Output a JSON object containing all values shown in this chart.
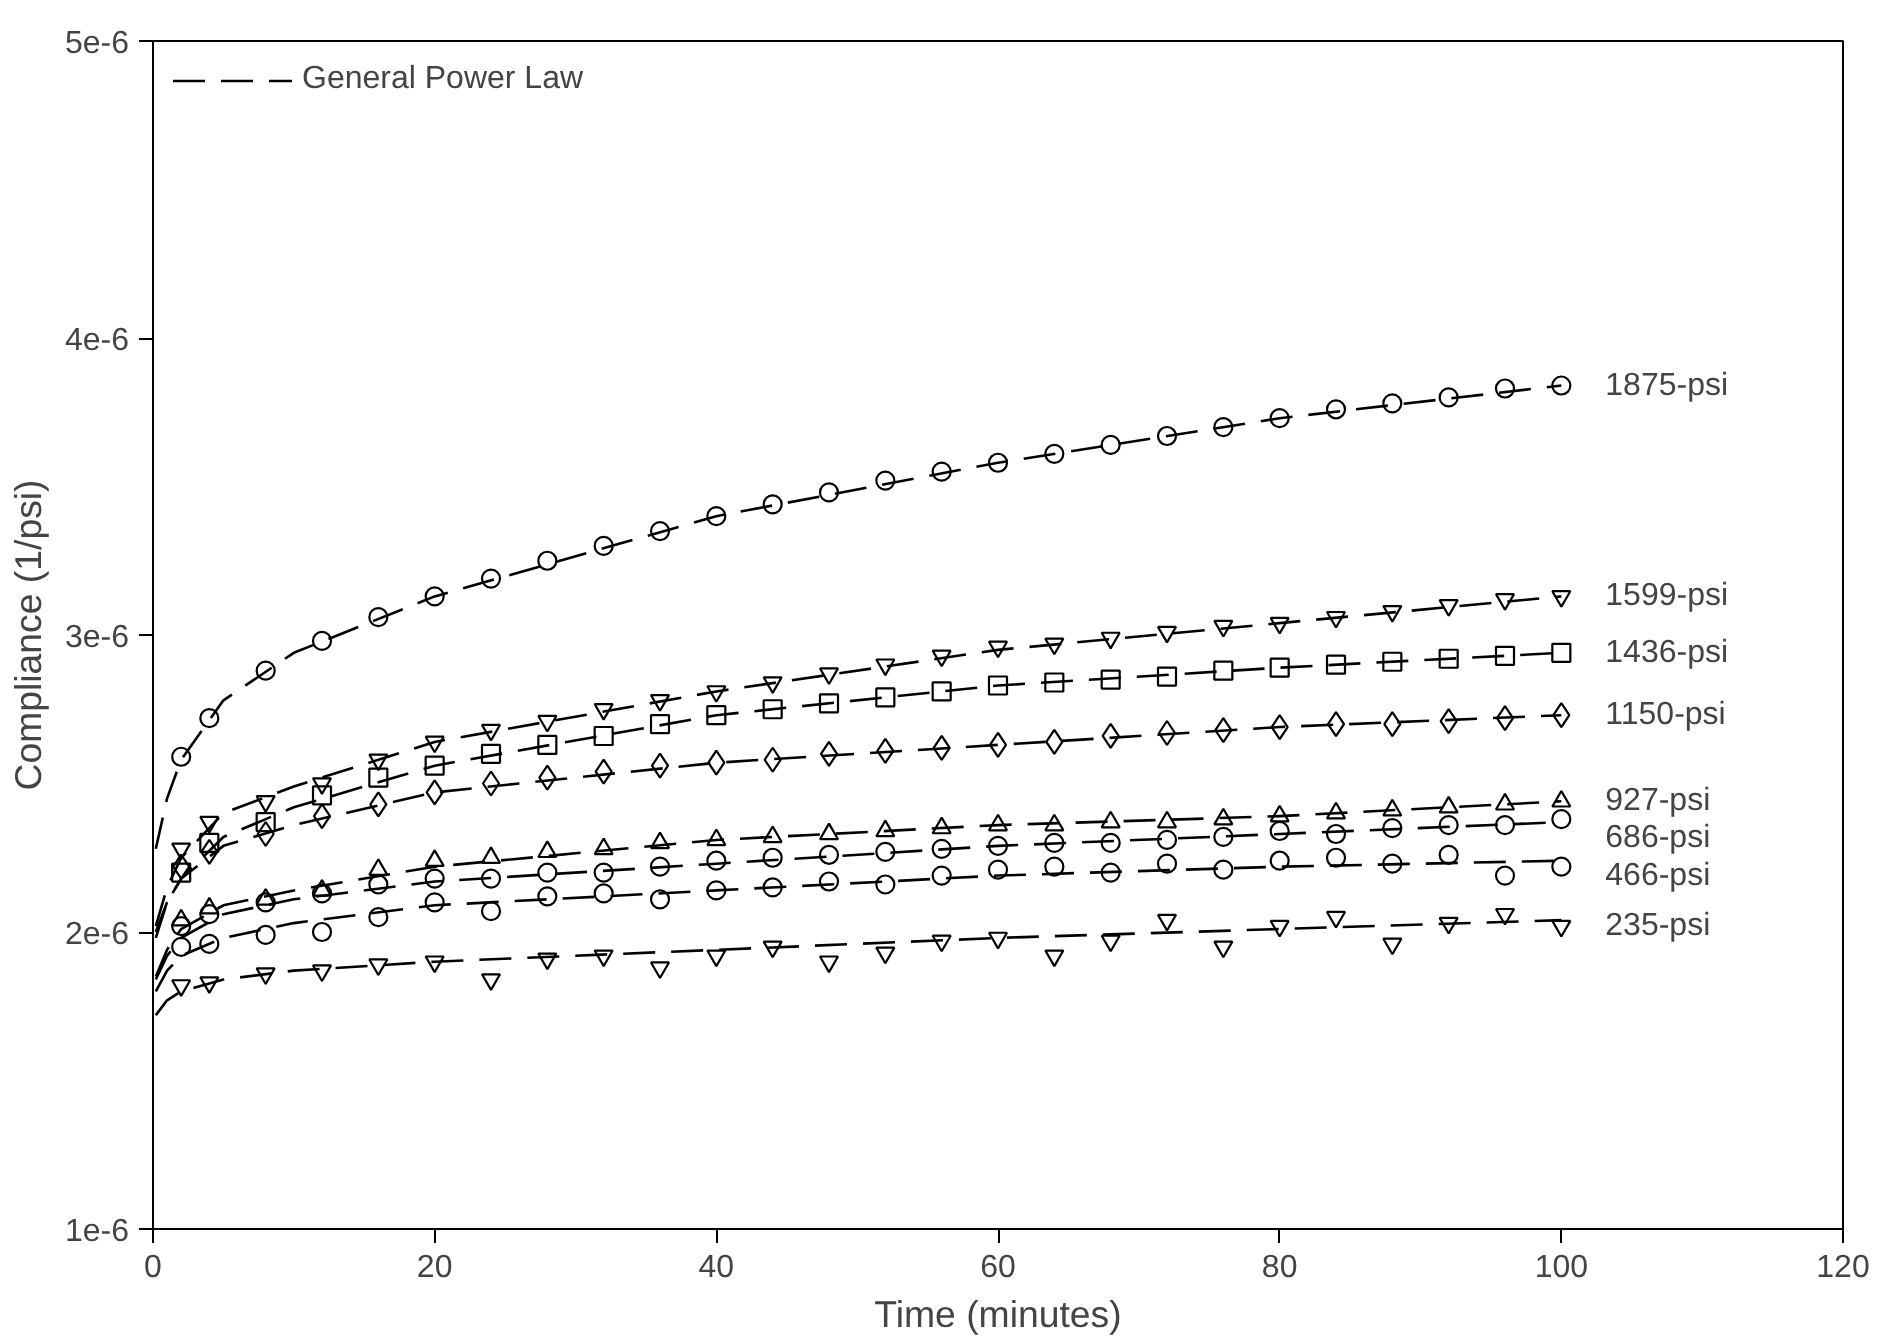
{
  "chart_data": {
    "type": "scatter",
    "xlabel": "Time (minutes)",
    "ylabel": "Compliance (1/psi)",
    "xlim": [
      0,
      120
    ],
    "xticks": [
      0,
      20,
      40,
      60,
      80,
      100,
      120
    ],
    "ylim": [
      1e-06,
      5e-06
    ],
    "yticks": [
      {
        "value": 1e-06,
        "label": "1e-6"
      },
      {
        "value": 2e-06,
        "label": "2e-6"
      },
      {
        "value": 3e-06,
        "label": "3e-6"
      },
      {
        "value": 4e-06,
        "label": "4e-6"
      },
      {
        "value": 5e-06,
        "label": "5e-6"
      }
    ],
    "x": [
      2,
      4,
      8,
      12,
      16,
      20,
      24,
      28,
      32,
      36,
      40,
      44,
      48,
      52,
      56,
      60,
      64,
      68,
      72,
      76,
      80,
      84,
      88,
      92,
      96,
      100
    ],
    "grid": false,
    "legend": "top left",
    "series": [
      {
        "name": "1875-psi",
        "color": "#000000",
        "marker": "circle",
        "values": [
          2.59e-06,
          2.72e-06,
          2.88e-06,
          2.98e-06,
          3.06e-06,
          3.13e-06,
          3.19e-06,
          3.25e-06,
          3.3e-06,
          3.35e-06,
          3.4e-06,
          3.44e-06,
          3.48e-06,
          3.52e-06,
          3.55e-06,
          3.58e-06,
          3.61e-06,
          3.64e-06,
          3.67e-06,
          3.7e-06,
          3.73e-06,
          3.76e-06,
          3.78e-06,
          3.8e-06,
          3.83e-06,
          3.84e-06
        ]
      },
      {
        "name": "1599-psi",
        "color": "#000000",
        "marker": "triangle_down",
        "values": [
          2.28e-06,
          2.37e-06,
          2.44e-06,
          2.5e-06,
          2.58e-06,
          2.64e-06,
          2.68e-06,
          2.71e-06,
          2.75e-06,
          2.78e-06,
          2.81e-06,
          2.84e-06,
          2.87e-06,
          2.9e-06,
          2.93e-06,
          2.96e-06,
          2.97e-06,
          2.99e-06,
          3.01e-06,
          3.03e-06,
          3.04e-06,
          3.06e-06,
          3.08e-06,
          3.1e-06,
          3.12e-06,
          3.13e-06
        ]
      },
      {
        "name": "1436-psi",
        "color": "#000000",
        "marker": "square",
        "values": [
          2.2e-06,
          2.3e-06,
          2.37e-06,
          2.46e-06,
          2.52e-06,
          2.56e-06,
          2.6e-06,
          2.63e-06,
          2.66e-06,
          2.7e-06,
          2.73e-06,
          2.75e-06,
          2.77e-06,
          2.79e-06,
          2.81e-06,
          2.83e-06,
          2.84e-06,
          2.85e-06,
          2.86e-06,
          2.88e-06,
          2.89e-06,
          2.9e-06,
          2.91e-06,
          2.92e-06,
          2.93e-06,
          2.94e-06
        ]
      },
      {
        "name": "1150-psi",
        "color": "#000000",
        "marker": "diamond",
        "values": [
          2.22e-06,
          2.27e-06,
          2.33e-06,
          2.39e-06,
          2.43e-06,
          2.47e-06,
          2.5e-06,
          2.52e-06,
          2.54e-06,
          2.56e-06,
          2.57e-06,
          2.58e-06,
          2.6e-06,
          2.61e-06,
          2.62e-06,
          2.63e-06,
          2.64e-06,
          2.66e-06,
          2.67e-06,
          2.68e-06,
          2.69e-06,
          2.7e-06,
          2.7e-06,
          2.71e-06,
          2.72e-06,
          2.73e-06
        ]
      },
      {
        "name": "927-psi",
        "color": "#000000",
        "marker": "triangle",
        "values": [
          2.04e-06,
          2.08e-06,
          2.11e-06,
          2.14e-06,
          2.21e-06,
          2.24e-06,
          2.25e-06,
          2.27e-06,
          2.28e-06,
          2.3e-06,
          2.31e-06,
          2.32e-06,
          2.33e-06,
          2.34e-06,
          2.35e-06,
          2.36e-06,
          2.36e-06,
          2.37e-06,
          2.37e-06,
          2.38e-06,
          2.39e-06,
          2.4e-06,
          2.41e-06,
          2.42e-06,
          2.43e-06,
          2.44e-06
        ]
      },
      {
        "name": "686-psi",
        "color": "#000000",
        "marker": "circle",
        "values": [
          2.02e-06,
          2.06e-06,
          2.1e-06,
          2.13e-06,
          2.16e-06,
          2.18e-06,
          2.18e-06,
          2.2e-06,
          2.2e-06,
          2.22e-06,
          2.24e-06,
          2.25e-06,
          2.26e-06,
          2.27e-06,
          2.28e-06,
          2.29e-06,
          2.3e-06,
          2.3e-06,
          2.31e-06,
          2.32e-06,
          2.34e-06,
          2.33e-06,
          2.35e-06,
          2.36e-06,
          2.36e-06,
          2.38e-06
        ]
      },
      {
        "name": "466-psi",
        "color": "#000000",
        "marker": "circle",
        "values": [
          1.95e-06,
          1.96e-06,
          1.99e-06,
          2e-06,
          2.05e-06,
          2.1e-06,
          2.07e-06,
          2.12e-06,
          2.13e-06,
          2.11e-06,
          2.14e-06,
          2.15e-06,
          2.17e-06,
          2.16e-06,
          2.19e-06,
          2.21e-06,
          2.22e-06,
          2.2e-06,
          2.23e-06,
          2.21e-06,
          2.24e-06,
          2.25e-06,
          2.23e-06,
          2.26e-06,
          2.19e-06,
          2.22e-06
        ]
      },
      {
        "name": "235-psi",
        "color": "#000000",
        "marker": "triangle_down",
        "values": [
          1.82e-06,
          1.83e-06,
          1.86e-06,
          1.87e-06,
          1.89e-06,
          1.9e-06,
          1.84e-06,
          1.91e-06,
          1.92e-06,
          1.88e-06,
          1.92e-06,
          1.95e-06,
          1.9e-06,
          1.93e-06,
          1.97e-06,
          1.98e-06,
          1.92e-06,
          1.97e-06,
          2.04e-06,
          1.95e-06,
          2.02e-06,
          2.05e-06,
          1.96e-06,
          2.03e-06,
          2.06e-06,
          2.02e-06
        ]
      },
      {
        "name": "General Power Law",
        "type": "line",
        "line_style": "dashed",
        "color": "#000000",
        "x": [
          0.2,
          1,
          2,
          5,
          10,
          20,
          40,
          60,
          80,
          100
        ],
        "values": [
          2.28e-06,
          2.45e-06,
          2.58e-06,
          2.78e-06,
          2.94e-06,
          3.13e-06,
          3.4e-06,
          3.58e-06,
          3.73e-06,
          3.84e-06
        ]
      },
      {
        "type": "line",
        "line_style": "dashed",
        "color": "#000000",
        "x": [
          0.2,
          1,
          2,
          5,
          10,
          20,
          40,
          60,
          80,
          100
        ],
        "values": [
          2.02e-06,
          2.15e-06,
          2.25e-06,
          2.4e-06,
          2.49e-06,
          2.64e-06,
          2.81e-06,
          2.95e-06,
          3.04e-06,
          3.13e-06
        ]
      },
      {
        "type": "line",
        "line_style": "dashed",
        "color": "#000000",
        "x": [
          0.2,
          1,
          2,
          5,
          10,
          20,
          40,
          60,
          80,
          100
        ],
        "values": [
          1.98e-06,
          2.1e-06,
          2.18e-06,
          2.32e-06,
          2.42e-06,
          2.56e-06,
          2.73e-06,
          2.83e-06,
          2.89e-06,
          2.94e-06
        ]
      },
      {
        "type": "line",
        "line_style": "dashed",
        "color": "#000000",
        "x": [
          0.2,
          1,
          2,
          5,
          10,
          20,
          40,
          60,
          80,
          100
        ],
        "values": [
          2e-06,
          2.1e-06,
          2.18e-06,
          2.29e-06,
          2.36e-06,
          2.47e-06,
          2.57e-06,
          2.63e-06,
          2.69e-06,
          2.73e-06
        ]
      },
      {
        "type": "line",
        "line_style": "dashed",
        "color": "#000000",
        "x": [
          0.2,
          1,
          2,
          5,
          10,
          20,
          40,
          60,
          80,
          100
        ],
        "values": [
          1.85e-06,
          1.94e-06,
          2.01e-06,
          2.09e-06,
          2.14e-06,
          2.22e-06,
          2.31e-06,
          2.36e-06,
          2.39e-06,
          2.44e-06
        ]
      },
      {
        "type": "line",
        "line_style": "dashed",
        "color": "#000000",
        "x": [
          0.2,
          1,
          2,
          5,
          10,
          20,
          40,
          60,
          80,
          100
        ],
        "values": [
          1.84e-06,
          1.92e-06,
          1.98e-06,
          2.06e-06,
          2.11e-06,
          2.17e-06,
          2.23e-06,
          2.29e-06,
          2.33e-06,
          2.37e-06
        ]
      },
      {
        "type": "line",
        "line_style": "dashed",
        "color": "#000000",
        "x": [
          0.2,
          1,
          2,
          5,
          10,
          20,
          40,
          60,
          80,
          100
        ],
        "values": [
          1.8e-06,
          1.87e-06,
          1.92e-06,
          1.98e-06,
          2.03e-06,
          2.09e-06,
          2.14e-06,
          2.19e-06,
          2.22e-06,
          2.24e-06
        ]
      },
      {
        "type": "line",
        "line_style": "dashed",
        "color": "#000000",
        "x": [
          0.2,
          1,
          2,
          5,
          10,
          20,
          40,
          60,
          80,
          100
        ],
        "values": [
          1.72e-06,
          1.77e-06,
          1.8e-06,
          1.84e-06,
          1.87e-06,
          1.9e-06,
          1.94e-06,
          1.98e-06,
          2.01e-06,
          2.04e-06
        ]
      }
    ]
  }
}
